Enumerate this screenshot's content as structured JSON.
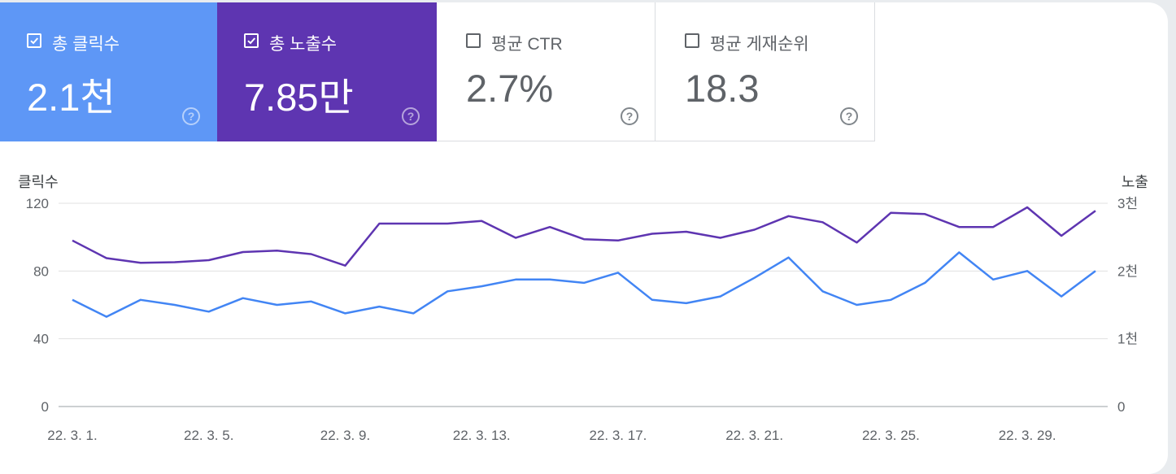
{
  "cards": [
    {
      "label": "총 클릭수",
      "value": "2.1천",
      "checked": true,
      "color": "#5e97f6"
    },
    {
      "label": "총 노출수",
      "value": "7.85만",
      "checked": true,
      "color": "#5e35b1"
    },
    {
      "label": "평균 CTR",
      "value": "2.7%",
      "checked": false
    },
    {
      "label": "평균 게재순위",
      "value": "18.3",
      "checked": false
    }
  ],
  "help_glyph": "?",
  "chart_data": {
    "type": "line",
    "x": [
      "22. 3. 1.",
      "22. 3. 2.",
      "22. 3. 3.",
      "22. 3. 4.",
      "22. 3. 5.",
      "22. 3. 6.",
      "22. 3. 7.",
      "22. 3. 8.",
      "22. 3. 9.",
      "22. 3. 10.",
      "22. 3. 11.",
      "22. 3. 12.",
      "22. 3. 13.",
      "22. 3. 14.",
      "22. 3. 15.",
      "22. 3. 16.",
      "22. 3. 17.",
      "22. 3. 18.",
      "22. 3. 19.",
      "22. 3. 20.",
      "22. 3. 21.",
      "22. 3. 22.",
      "22. 3. 23.",
      "22. 3. 24.",
      "22. 3. 25.",
      "22. 3. 26.",
      "22. 3. 27.",
      "22. 3. 28.",
      "22. 3. 29.",
      "22. 3. 30.",
      "22. 3. 31."
    ],
    "x_tick_labels": [
      "22. 3. 1.",
      "22. 3. 5.",
      "22. 3. 9.",
      "22. 3. 13.",
      "22. 3. 17.",
      "22. 3. 21.",
      "22. 3. 25.",
      "22. 3. 29."
    ],
    "y_left": {
      "label": "클릭수",
      "ticks": [
        0,
        40,
        80,
        120
      ],
      "tick_labels": [
        "0",
        "40",
        "80",
        "120"
      ],
      "range": [
        0,
        120
      ]
    },
    "y_right": {
      "label": "노출",
      "ticks": [
        0,
        1000,
        2000,
        3000
      ],
      "tick_labels": [
        "0",
        "1천",
        "2천",
        "3천"
      ],
      "range": [
        0,
        3000
      ]
    },
    "grid": true,
    "series": [
      {
        "axis": "left",
        "color": "#4285f4",
        "values": [
          63,
          53,
          63,
          60,
          56,
          64,
          60,
          62,
          55,
          59,
          55,
          68,
          71,
          75,
          75,
          73,
          79,
          63,
          61,
          65,
          76,
          88,
          68,
          60,
          63,
          73,
          91,
          75,
          80,
          65,
          80
        ]
      },
      {
        "axis": "right",
        "color": "#5e35b1",
        "values": [
          2450,
          2190,
          2120,
          2130,
          2160,
          2280,
          2300,
          2250,
          2080,
          2700,
          2700,
          2700,
          2740,
          2490,
          2650,
          2470,
          2450,
          2550,
          2580,
          2490,
          2610,
          2810,
          2720,
          2420,
          2860,
          2840,
          2650,
          2650,
          2940,
          2520,
          2890
        ]
      }
    ]
  }
}
